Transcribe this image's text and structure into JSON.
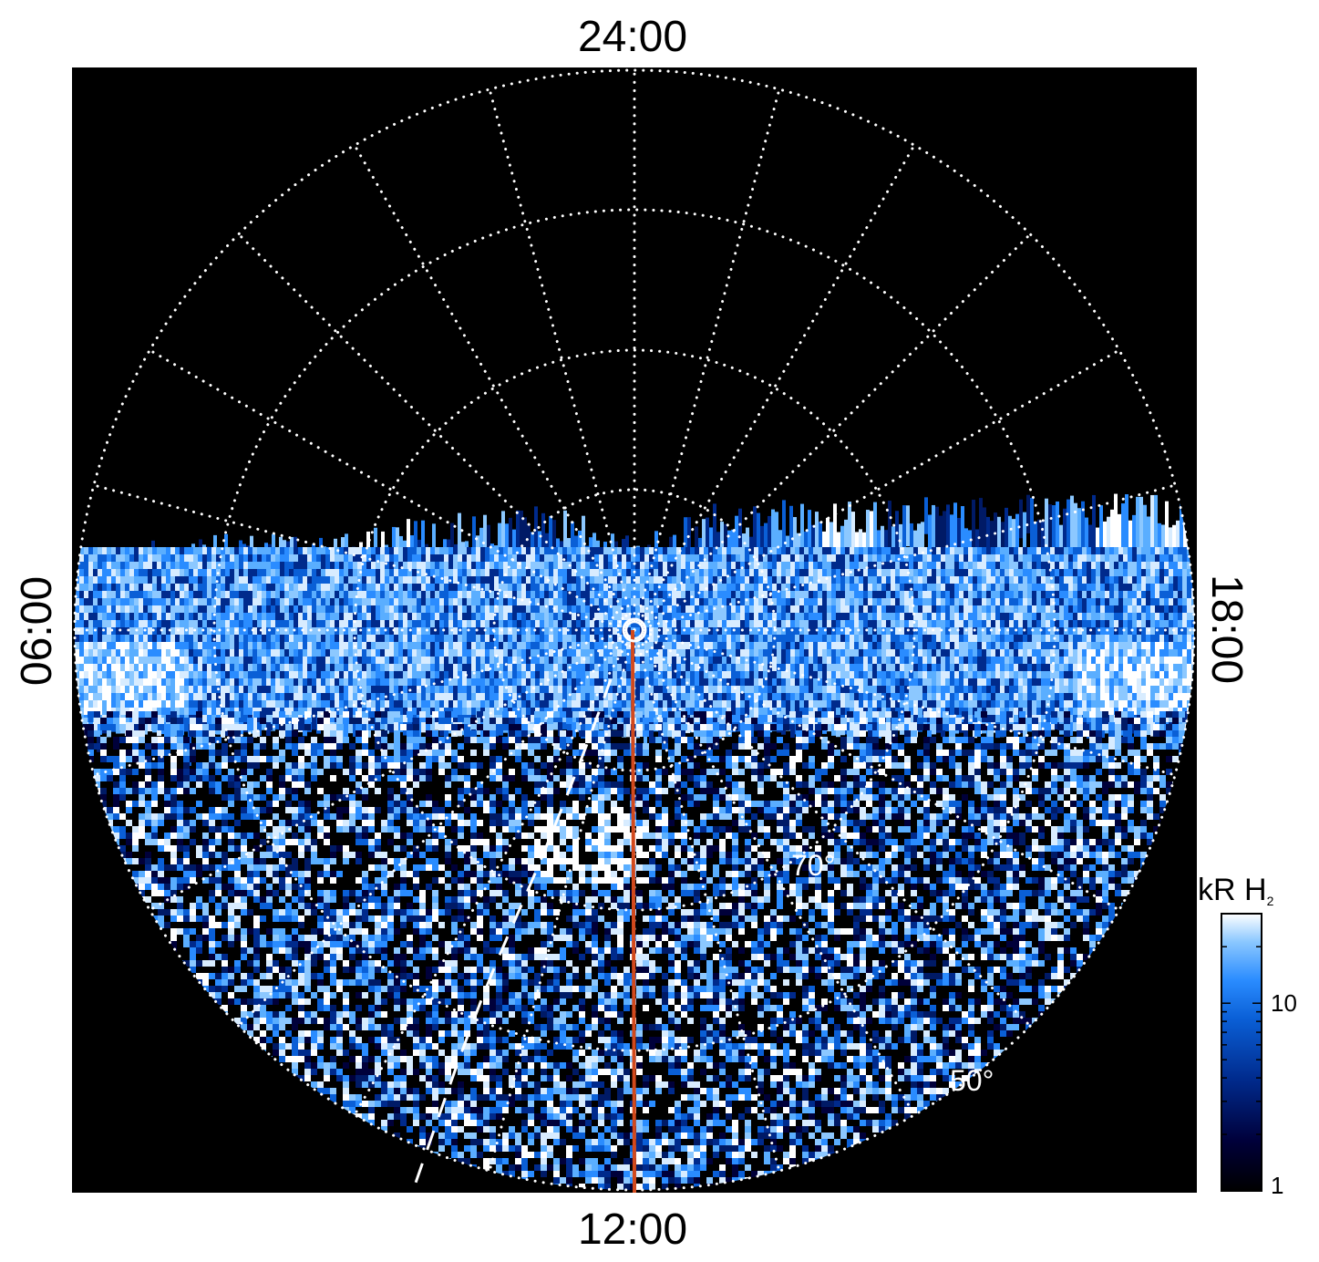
{
  "map": {
    "projection": "polar",
    "background": "#000000",
    "local_time_labels": {
      "top": "24:00",
      "bottom": "12:00",
      "left": "06:00",
      "right": "18:00"
    },
    "latitude_labels": {
      "inner": "70°",
      "outer": "50°"
    },
    "grid": {
      "latitude_circles_deg": [
        80,
        70,
        60,
        50
      ],
      "meridian_step_hours": 1,
      "style": "dotted",
      "color": "#ffffff"
    },
    "overlays": {
      "noon_meridian_line_color": "#d2491c",
      "dashed_trace_color": "#ffffff"
    }
  },
  "colorbar": {
    "title": "kR H",
    "title_subscript": "2",
    "scale": "log",
    "tick_labels": [
      "1",
      "10"
    ],
    "range": [
      1,
      30
    ],
    "colors": [
      "#000000",
      "#00003a",
      "#002a8c",
      "#0a5fd6",
      "#2a8cff",
      "#8cc8ff",
      "#ffffff"
    ]
  }
}
